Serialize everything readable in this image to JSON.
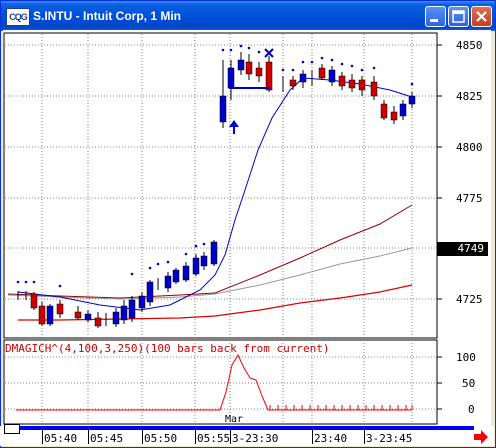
{
  "window": {
    "title": "S.INTU - Intuit Corp, 1 Min",
    "app_icon_text": "CQG"
  },
  "price_axis": {
    "labels": [
      "4850",
      "4825",
      "4800",
      "4775",
      "4725"
    ],
    "current_price": "4749"
  },
  "indicator": {
    "label": "DMAGICH^(4,100,3,250)(100 bars back from current)",
    "axis_labels": [
      "100",
      "50",
      "0"
    ],
    "marker_label": "Mar"
  },
  "time_axis": {
    "labels": [
      "05:40",
      "05:45",
      "05:50",
      "05:55",
      "3-23:30",
      "23:40",
      "3-23:45"
    ]
  },
  "colors": {
    "title_bar": "#0050d8",
    "up_bar": "#0000cc",
    "down_bar": "#cc0000",
    "upper_band": "#990000",
    "mid_band": "#999999",
    "lower_band": "#dd0000",
    "ma_line": "#0000cc",
    "indicator_line": "#ff0000"
  },
  "icons": {
    "minimize": "minimize-icon",
    "maximize": "maximize-icon",
    "close": "close-icon",
    "next_page": "red-right-arrow-icon"
  }
}
